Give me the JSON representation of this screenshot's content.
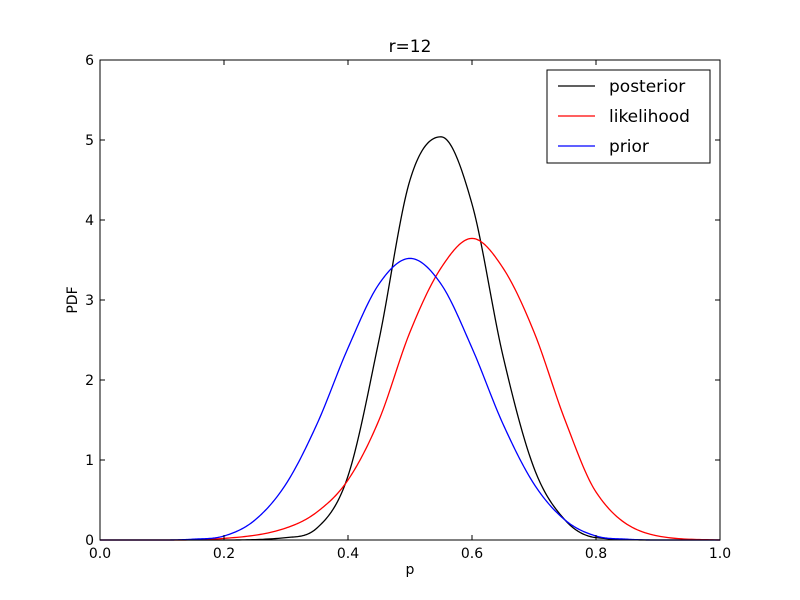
{
  "chart_data": {
    "type": "line",
    "title": "r=12",
    "xlabel": "p",
    "ylabel": "PDF",
    "xlim": [
      0.0,
      1.0
    ],
    "ylim": [
      0,
      6
    ],
    "xticks": [
      "0.0",
      "0.2",
      "0.4",
      "0.6",
      "0.8",
      "1.0"
    ],
    "yticks": [
      "0",
      "1",
      "2",
      "3",
      "4",
      "5",
      "6"
    ],
    "grid": false,
    "legend_position": "top-right",
    "series": [
      {
        "name": "posterior",
        "color": "#000000",
        "x": [
          0.0,
          0.2,
          0.3,
          0.35,
          0.4,
          0.45,
          0.5,
          0.55,
          0.6,
          0.65,
          0.7,
          0.75,
          0.8,
          0.9,
          1.0
        ],
        "y": [
          0.0,
          0.0,
          0.03,
          0.15,
          0.8,
          2.5,
          4.5,
          5.04,
          4.2,
          2.3,
          0.9,
          0.25,
          0.03,
          0.0,
          0.0
        ]
      },
      {
        "name": "likelihood",
        "color": "#ff0000",
        "x": [
          0.0,
          0.1,
          0.2,
          0.3,
          0.35,
          0.4,
          0.45,
          0.5,
          0.55,
          0.6,
          0.65,
          0.7,
          0.75,
          0.8,
          0.9,
          1.0
        ],
        "y": [
          0.0,
          0.0,
          0.02,
          0.15,
          0.35,
          0.75,
          1.5,
          2.6,
          3.4,
          3.77,
          3.4,
          2.6,
          1.5,
          0.6,
          0.05,
          0.0
        ]
      },
      {
        "name": "prior",
        "color": "#0000ff",
        "x": [
          0.0,
          0.1,
          0.15,
          0.2,
          0.25,
          0.3,
          0.35,
          0.4,
          0.45,
          0.5,
          0.55,
          0.6,
          0.65,
          0.7,
          0.75,
          0.8,
          0.85,
          0.9,
          1.0
        ],
        "y": [
          0.0,
          0.0,
          0.01,
          0.05,
          0.25,
          0.7,
          1.45,
          2.4,
          3.2,
          3.52,
          3.2,
          2.4,
          1.45,
          0.7,
          0.25,
          0.05,
          0.01,
          0.0,
          0.0
        ]
      }
    ]
  }
}
